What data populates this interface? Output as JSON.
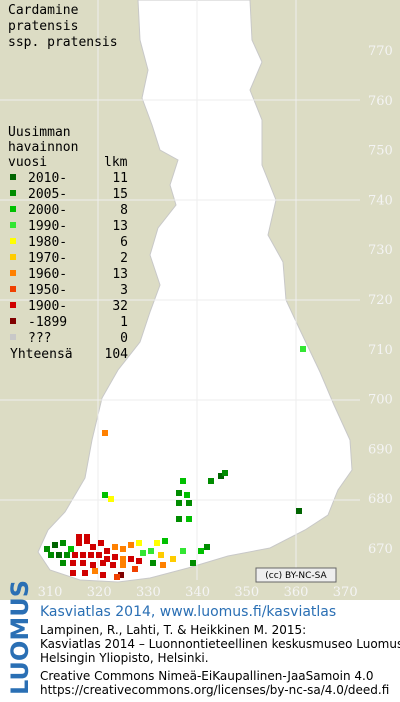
{
  "title": [
    "Cardamine",
    "pratensis",
    "ssp. pratensis"
  ],
  "legend": {
    "heading": [
      "Uusimman",
      "havainnon",
      "vuosi"
    ],
    "count_heading": "lkm",
    "rows": [
      {
        "label": "2010-",
        "count": 11,
        "color": "#006400"
      },
      {
        "label": "2005-",
        "count": 15,
        "color": "#008c00"
      },
      {
        "label": "2000-",
        "count": 8,
        "color": "#00c000"
      },
      {
        "label": "1990-",
        "count": 13,
        "color": "#33e633"
      },
      {
        "label": "1980-",
        "count": 6,
        "color": "#ffff00"
      },
      {
        "label": "1970-",
        "count": 2,
        "color": "#ffcc00"
      },
      {
        "label": "1960-",
        "count": 13,
        "color": "#ff8000"
      },
      {
        "label": "1950-",
        "count": 3,
        "color": "#f04000"
      },
      {
        "label": "1900-",
        "count": 32,
        "color": "#d00000"
      },
      {
        "label": "-1899",
        "count": 1,
        "color": "#800000"
      },
      {
        "label": "???",
        "count": 0,
        "color": "#c8c8c8"
      }
    ],
    "total": {
      "label": "Yhteensä",
      "count": 104
    }
  },
  "x_labels": [
    310,
    320,
    330,
    340,
    350,
    360,
    370
  ],
  "y_labels": [
    770,
    760,
    750,
    740,
    730,
    720,
    710,
    700,
    690,
    680,
    670
  ],
  "footer": {
    "logo": "LUOMUS",
    "link": "Kasviatlas 2014, www.luomus.fi/kasviatlas",
    "citation": [
      "Lampinen, R., Lahti, T. & Heikkinen M. 2015:",
      "Kasviatlas 2014 – Luonnontieteellinen keskusmuseo Luomus,",
      "Helsingin Yliopisto, Helsinki."
    ],
    "license": [
      "Creative Commons Nimeä-EiKaupallinen-JaaSamoin 4.0",
      "https://creativecommons.org/licenses/by-nc-sa/4.0/deed.fi"
    ]
  }
}
